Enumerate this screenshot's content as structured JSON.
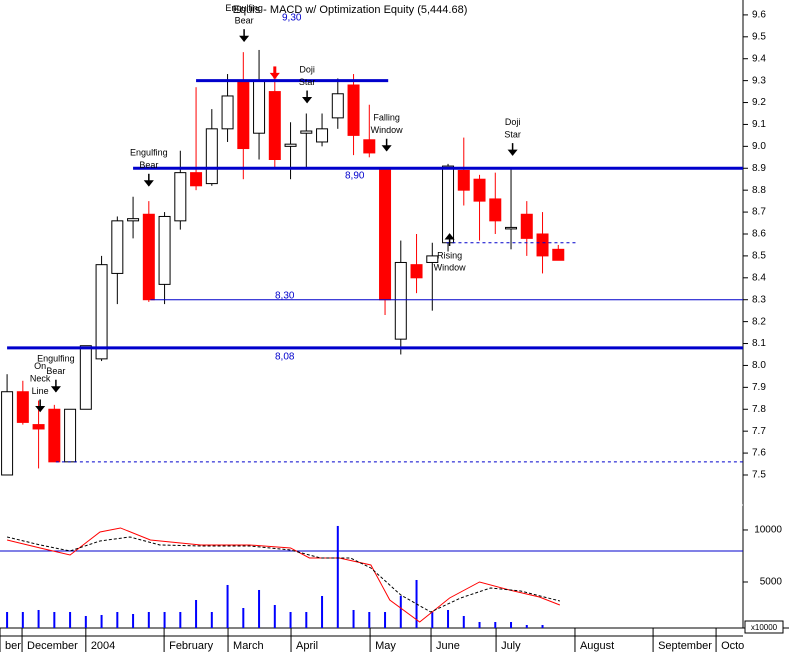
{
  "chart_data": [
    {
      "type": "candlestick",
      "title": "Equis - MACD  w/ Optimization Equity (5,444.68)",
      "up_color": "#ffffff",
      "down_color": "#ff0000",
      "level_color": "#0000cc",
      "open": [
        7.5,
        7.88,
        7.73,
        7.8,
        7.56,
        7.8,
        8.03,
        8.42,
        8.66,
        8.69,
        8.37,
        8.66,
        8.88,
        8.83,
        9.08,
        9.3,
        9.06,
        9.25,
        9.0,
        9.06,
        9.02,
        9.13,
        9.28,
        9.03,
        8.9,
        8.12,
        8.46,
        8.47,
        8.56,
        8.89,
        8.85,
        8.76,
        8.63,
        8.69,
        8.6,
        8.53
      ],
      "high": [
        7.96,
        7.93,
        7.84,
        7.82,
        7.8,
        8.09,
        8.5,
        8.68,
        8.77,
        8.75,
        8.7,
        8.98,
        9.27,
        9.17,
        9.33,
        9.43,
        9.44,
        9.35,
        9.11,
        9.15,
        9.15,
        9.31,
        9.33,
        9.19,
        8.9,
        8.57,
        8.6,
        8.56,
        8.92,
        9.04,
        8.87,
        8.88,
        8.9,
        8.75,
        8.7,
        8.55
      ],
      "low": [
        7.5,
        7.73,
        7.53,
        7.56,
        7.56,
        7.8,
        8.02,
        8.28,
        8.58,
        8.29,
        8.28,
        8.62,
        8.8,
        8.82,
        9.02,
        8.85,
        8.94,
        8.9,
        8.85,
        8.9,
        9.0,
        9.08,
        8.96,
        8.95,
        8.23,
        8.05,
        8.33,
        8.25,
        8.52,
        8.73,
        8.57,
        8.6,
        8.53,
        8.5,
        8.42,
        8.48
      ],
      "close": [
        7.88,
        7.74,
        7.71,
        7.56,
        7.8,
        8.09,
        8.46,
        8.66,
        8.67,
        8.3,
        8.68,
        8.88,
        8.82,
        9.08,
        9.23,
        8.99,
        9.3,
        8.94,
        9.01,
        9.07,
        9.08,
        9.24,
        9.05,
        8.97,
        8.3,
        8.47,
        8.4,
        8.5,
        8.91,
        8.8,
        8.75,
        8.66,
        8.63,
        8.58,
        8.5,
        8.48
      ],
      "xlim": [
        -0.45,
        46.73
      ],
      "xticks": [
        {
          "value": -0.45,
          "label": "ber"
        },
        {
          "value": 0.95,
          "label": "December"
        },
        {
          "value": 5.0,
          "label": "2004"
        },
        {
          "value": 9.97,
          "label": "February"
        },
        {
          "value": 14.03,
          "label": "March"
        },
        {
          "value": 18.03,
          "label": "April"
        },
        {
          "value": 23.05,
          "label": "May"
        },
        {
          "value": 26.92,
          "label": "June"
        },
        {
          "value": 31.05,
          "label": "July"
        },
        {
          "value": 36.06,
          "label": "August"
        },
        {
          "value": 41.02,
          "label": "September"
        },
        {
          "value": 45.02,
          "label": "Octo"
        }
      ],
      "ylim": [
        7.363,
        9.668
      ],
      "yticks": [
        7.5,
        7.6,
        7.7,
        7.8,
        7.9,
        {
          "value": 8,
          "label": "8.0"
        },
        8.1,
        8.2,
        8.3,
        8.4,
        8.5,
        8.6,
        8.7,
        8.8,
        8.9,
        {
          "value": 9,
          "label": "9.0"
        },
        9.1,
        9.2,
        9.3,
        9.4,
        9.5,
        9.6
      ],
      "levels": [
        {
          "value": 9.3,
          "label": "9,30",
          "from": 12,
          "to": 24.2,
          "style": "thick"
        },
        {
          "value": 8.9,
          "label": "8,90",
          "from": 8,
          "to": 46.73,
          "style": "thick"
        },
        {
          "value": 8.3,
          "label": "8,30",
          "from": 9.1,
          "to": 46.73,
          "style": "thin"
        },
        {
          "value": 8.08,
          "label": "8,08",
          "from": 0,
          "to": 46.73,
          "style": "thick"
        },
        {
          "value": 8.56,
          "from": 27.9,
          "to": 36.1,
          "style": "dashed"
        },
        {
          "value": 7.56,
          "from": 3.1,
          "to": 46.73,
          "style": "dashed"
        }
      ],
      "annotations": [
        {
          "text": [
            "On",
            "Neck",
            "Line"
          ],
          "x": 2.1,
          "y": 7.79,
          "direction": "down",
          "color": "#000000"
        },
        {
          "text": [
            "Engulfing",
            "Bear"
          ],
          "x": 3.1,
          "y": 7.88,
          "direction": "down",
          "color": "#000000"
        },
        {
          "text": [
            "Engulfing",
            "Bear"
          ],
          "x": 9.0,
          "y": 8.82,
          "direction": "down",
          "color": "#000000"
        },
        {
          "text": [
            "Engulfing",
            "Bear"
          ],
          "x": 15.05,
          "y": 9.48,
          "direction": "down",
          "color": "#000000"
        },
        {
          "x": 17.0,
          "y": 9.31,
          "direction": "down",
          "color": "#ff0000"
        },
        {
          "text": [
            "Doji",
            "Star"
          ],
          "x": 19.05,
          "y": 9.2,
          "direction": "down",
          "color": "#000000"
        },
        {
          "text": [
            "Falling",
            "Window"
          ],
          "x": 24.1,
          "y": 8.98,
          "direction": "down",
          "color": "#000000"
        },
        {
          "text": [
            "Rising",
            "Window"
          ],
          "x": 28.1,
          "y": 8.6,
          "direction": "up",
          "color": "#000000"
        },
        {
          "text": [
            "Doji",
            "Star"
          ],
          "x": 32.1,
          "y": 8.96,
          "direction": "down",
          "color": "#000000"
        }
      ]
    },
    {
      "type": "volume",
      "ylim": [
        577,
        12400
      ],
      "yticks": [
        5000,
        10000
      ],
      "y_unit_label": "x10000",
      "reference_line": 7980,
      "volume": {
        "color": "#0000ff",
        "values": [
          2115,
          2115,
          2308,
          2115,
          2115,
          1731,
          1827,
          2115,
          1923,
          2115,
          2115,
          2115,
          3269,
          2115,
          4712,
          2500,
          4231,
          2788,
          2115,
          2115,
          3654,
          10385,
          2308,
          2115,
          2115,
          3654,
          5192,
          2115,
          2308,
          1731,
          1154,
          1154,
          1154,
          865,
          865,
          null
        ]
      },
      "lines": [
        {
          "color": "#ff0000",
          "style": "solid",
          "x": [
            0,
            2.1,
            4.0,
            5.9,
            7.2,
            9.1,
            12.3,
            15.4,
            18.0,
            19.2,
            21.1,
            23.1,
            24.3,
            26.2,
            28.1,
            30.0,
            31.9,
            33.8,
            35.1
          ],
          "values": [
            9038,
            8269,
            7596,
            9808,
            10192,
            9038,
            8558,
            8558,
            8269,
            7308,
            7308,
            6635,
            3269,
            1154,
            3462,
            5000,
            4231,
            3558,
            2788
          ]
        },
        {
          "color": "#000000",
          "style": "dashed",
          "x": [
            0,
            2.1,
            4.0,
            5.9,
            7.8,
            9.7,
            12.3,
            15.4,
            18.0,
            19.9,
            21.8,
            23.1,
            25.0,
            26.9,
            28.8,
            30.7,
            32.6,
            35.1
          ],
          "values": [
            9327,
            8558,
            7981,
            8942,
            9327,
            8558,
            8462,
            8462,
            8077,
            7308,
            7308,
            6346,
            3750,
            2115,
            3462,
            4423,
            4135,
            3173
          ]
        }
      ]
    }
  ]
}
